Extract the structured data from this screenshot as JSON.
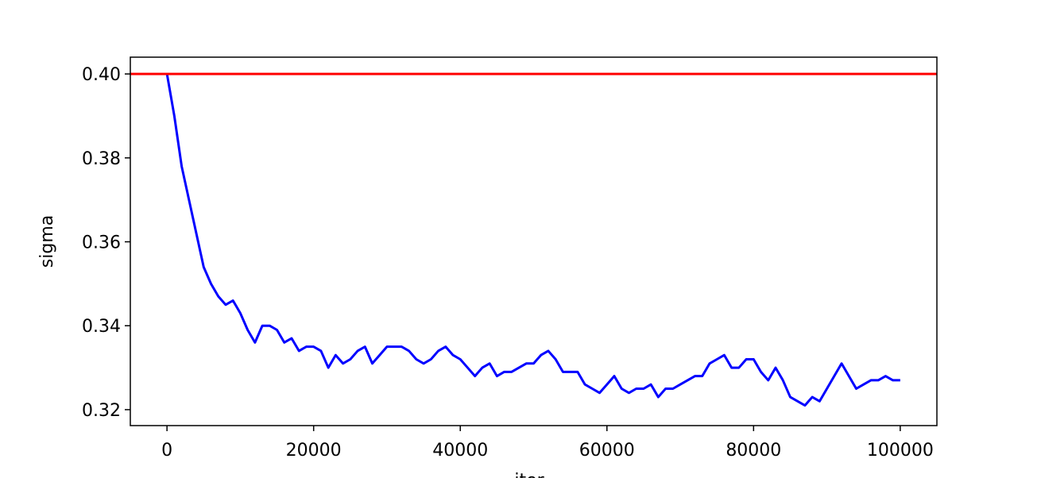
{
  "chart_data": {
    "type": "line",
    "xlabel": "iter",
    "ylabel": "sigma",
    "xlim": [
      -5000,
      105000
    ],
    "ylim": [
      0.3162,
      0.404
    ],
    "xticks": [
      0,
      20000,
      40000,
      60000,
      80000,
      100000
    ],
    "yticks": [
      0.32,
      0.34,
      0.36,
      0.38,
      {
        "value": 0.4,
        "label": "0.40"
      }
    ],
    "hline": {
      "value": 0.4,
      "color": "#ff0000"
    },
    "x": [
      0,
      500,
      1000,
      2000,
      3000,
      4000,
      5000,
      6000,
      7000,
      8000,
      9000,
      10000,
      11000,
      12000,
      13000,
      14000,
      15000,
      16000,
      17000,
      18000,
      19000,
      20000,
      21000,
      22000,
      23000,
      24000,
      25000,
      26000,
      27000,
      28000,
      29000,
      30000,
      31000,
      32000,
      33000,
      34000,
      35000,
      36000,
      37000,
      38000,
      39000,
      40000,
      41000,
      42000,
      43000,
      44000,
      45000,
      46000,
      47000,
      48000,
      49000,
      50000,
      51000,
      52000,
      53000,
      54000,
      55000,
      56000,
      57000,
      58000,
      59000,
      60000,
      61000,
      62000,
      63000,
      64000,
      65000,
      66000,
      67000,
      68000,
      69000,
      70000,
      71000,
      72000,
      73000,
      74000,
      75000,
      76000,
      77000,
      78000,
      79000,
      80000,
      81000,
      82000,
      83000,
      84000,
      85000,
      86000,
      87000,
      88000,
      89000,
      90000,
      91000,
      92000,
      93000,
      94000,
      95000,
      96000,
      97000,
      98000,
      99000,
      100000
    ],
    "series": [
      {
        "color": "#0000ff",
        "values": [
          0.4,
          0.395,
          0.39,
          0.378,
          0.37,
          0.362,
          0.354,
          0.35,
          0.347,
          0.345,
          0.346,
          0.343,
          0.339,
          0.336,
          0.34,
          0.34,
          0.339,
          0.336,
          0.337,
          0.334,
          0.335,
          0.335,
          0.334,
          0.33,
          0.333,
          0.331,
          0.332,
          0.334,
          0.335,
          0.331,
          0.333,
          0.335,
          0.335,
          0.335,
          0.334,
          0.332,
          0.331,
          0.332,
          0.334,
          0.335,
          0.333,
          0.332,
          0.33,
          0.328,
          0.33,
          0.331,
          0.328,
          0.329,
          0.329,
          0.33,
          0.331,
          0.331,
          0.333,
          0.334,
          0.332,
          0.329,
          0.329,
          0.329,
          0.326,
          0.325,
          0.324,
          0.326,
          0.328,
          0.325,
          0.324,
          0.325,
          0.325,
          0.326,
          0.323,
          0.325,
          0.325,
          0.326,
          0.327,
          0.328,
          0.328,
          0.331,
          0.332,
          0.333,
          0.33,
          0.33,
          0.332,
          0.332,
          0.329,
          0.327,
          0.33,
          0.327,
          0.323,
          0.322,
          0.321,
          0.323,
          0.322,
          0.325,
          0.328,
          0.331,
          0.328,
          0.325,
          0.326,
          0.327,
          0.327,
          0.328,
          0.327,
          0.327
        ]
      }
    ]
  }
}
